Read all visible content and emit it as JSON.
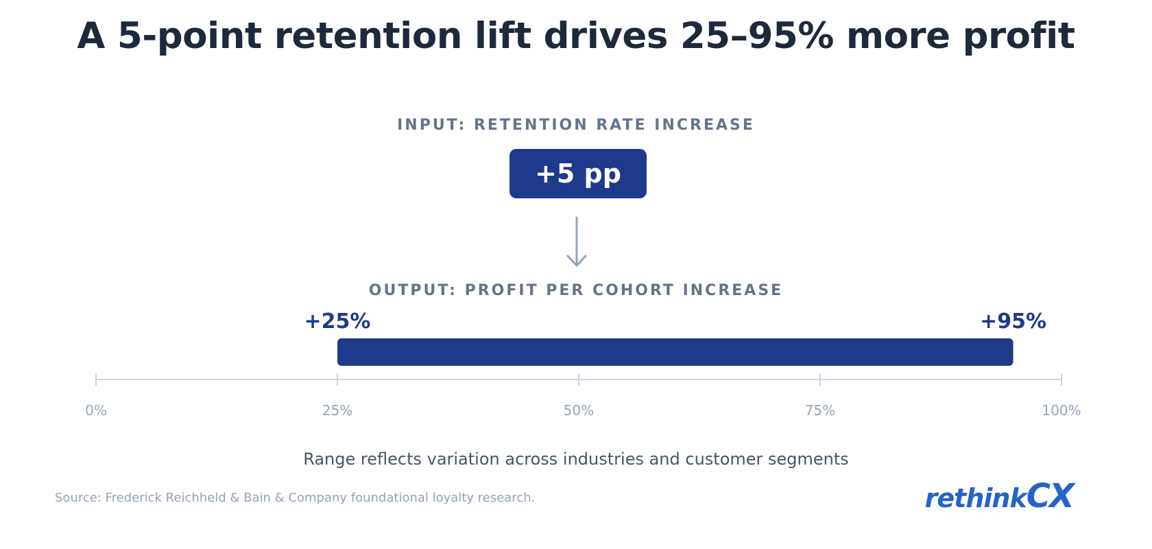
{
  "title": "A 5-point retention lift drives 25–95% more profit",
  "input": {
    "label": "INPUT: RETENTION RATE INCREASE",
    "value_label": "+5 pp"
  },
  "output": {
    "label": "OUTPUT: PROFIT PER COHORT INCREASE"
  },
  "chart_data": {
    "type": "bar",
    "orientation": "horizontal-range",
    "x_range": [
      0,
      100
    ],
    "ticks": [
      0,
      25,
      50,
      75,
      100
    ],
    "tick_labels": [
      "0%",
      "25%",
      "50%",
      "75%",
      "100%"
    ],
    "range": {
      "low": 25,
      "high": 95,
      "low_label": "+25%",
      "high_label": "+95%"
    },
    "bar_color": "#1e3a8a",
    "axis_color": "#cbd5e1",
    "tick_label_color": "#94a3b8",
    "grid": false
  },
  "footnote": "Range reflects variation across industries and customer segments",
  "source": "Source: Frederick Reichheld & Bain & Company foundational loyalty research.",
  "logo": {
    "text_left": "rethink",
    "text_right": "CX",
    "color": "#2563c9"
  }
}
